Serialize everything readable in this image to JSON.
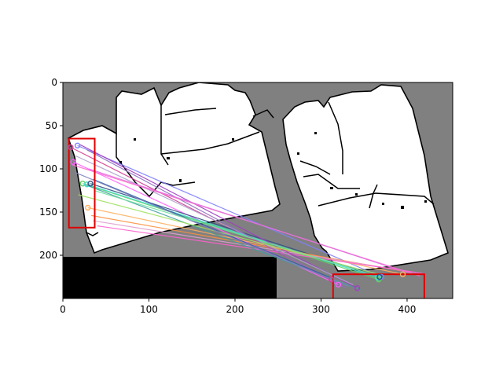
{
  "figure": {
    "kind": "image with feature-match overlay",
    "colors": {
      "map_background": "#808080",
      "free_space": "#ffffff",
      "walls": "#000000",
      "black_region": "#000000",
      "roi_box": "#e00000"
    }
  },
  "chart_data": {
    "type": "image",
    "title": "",
    "xlabel": "",
    "ylabel": "",
    "xlim": [
      0,
      453
    ],
    "ylim": [
      250,
      0
    ],
    "x_ticks": [
      0,
      100,
      200,
      300,
      400
    ],
    "y_ticks": [
      0,
      50,
      100,
      150,
      200
    ],
    "x_tick_labels": [
      "0",
      "100",
      "200",
      "300",
      "400"
    ],
    "y_tick_labels": [
      "0",
      "50",
      "100",
      "150",
      "200"
    ],
    "grid": false,
    "roi_boxes": [
      {
        "x0": 7,
        "y0": 65,
        "x1": 37,
        "y1": 168
      },
      {
        "x0": 314,
        "y0": 222,
        "x1": 420,
        "y1": 252
      }
    ],
    "matches": [
      {
        "p1": [
          17,
          73
        ],
        "p2": [
          370,
          225
        ],
        "color": "#8080ff"
      },
      {
        "p1": [
          9,
          75
        ],
        "p2": [
          312,
          228
        ],
        "color": "#d04090"
      },
      {
        "p1": [
          12,
          92
        ],
        "p2": [
          320,
          234
        ],
        "color": "#ff60ff"
      },
      {
        "p1": [
          23,
          117
        ],
        "p2": [
          367,
          228
        ],
        "color": "#60d060"
      },
      {
        "p1": [
          28,
          118
        ],
        "p2": [
          366,
          226
        ],
        "color": "#40e0d0"
      },
      {
        "p1": [
          32,
          117
        ],
        "p2": [
          368,
          225
        ],
        "color": "#305080"
      },
      {
        "p1": [
          29,
          145
        ],
        "p2": [
          395,
          222
        ],
        "color": "#ffb060"
      },
      {
        "p1": [
          33,
          154
        ],
        "p2": [
          393,
          218
        ],
        "color": "#ff9040"
      },
      {
        "p1": [
          35,
          160
        ],
        "p2": [
          410,
          220
        ],
        "color": "#e0a0d0"
      },
      {
        "p1": [
          40,
          166
        ],
        "p2": [
          418,
          221
        ],
        "color": "#ff60d0"
      },
      {
        "p1": [
          20,
          72
        ],
        "p2": [
          342,
          238
        ],
        "color": "#a040c0"
      },
      {
        "p1": [
          15,
          85
        ],
        "p2": [
          337,
          234
        ],
        "color": "#b0a0d0"
      },
      {
        "p1": [
          25,
          118
        ],
        "p2": [
          346,
          240
        ],
        "color": "#40a0a0"
      },
      {
        "p1": [
          28,
          78
        ],
        "p2": [
          329,
          238
        ],
        "color": "#9070c0"
      },
      {
        "p1": [
          10,
          95
        ],
        "p2": [
          415,
          224
        ],
        "color": "#ff70d0"
      },
      {
        "p1": [
          35,
          112
        ],
        "p2": [
          311,
          226
        ],
        "color": "#3060a0"
      },
      {
        "p1": [
          18,
          130
        ],
        "p2": [
          367,
          222
        ],
        "color": "#a0e060"
      },
      {
        "p1": [
          30,
          100
        ],
        "p2": [
          400,
          220
        ],
        "color": "#e070e0"
      },
      {
        "p1": [
          14,
          104
        ],
        "p2": [
          332,
          236
        ],
        "color": "#8080c0"
      },
      {
        "p1": [
          36,
          125
        ],
        "p2": [
          372,
          226
        ],
        "color": "#70e0a0"
      }
    ],
    "keypoints_left": [
      [
        17,
        73
      ],
      [
        9,
        75
      ],
      [
        12,
        92
      ],
      [
        23,
        117
      ],
      [
        28,
        118
      ],
      [
        32,
        117
      ],
      [
        29,
        145
      ]
    ],
    "keypoints_right": [
      [
        370,
        225
      ],
      [
        312,
        228
      ],
      [
        320,
        234
      ],
      [
        367,
        228
      ],
      [
        366,
        226
      ],
      [
        368,
        225
      ],
      [
        395,
        222
      ],
      [
        342,
        238
      ]
    ]
  }
}
